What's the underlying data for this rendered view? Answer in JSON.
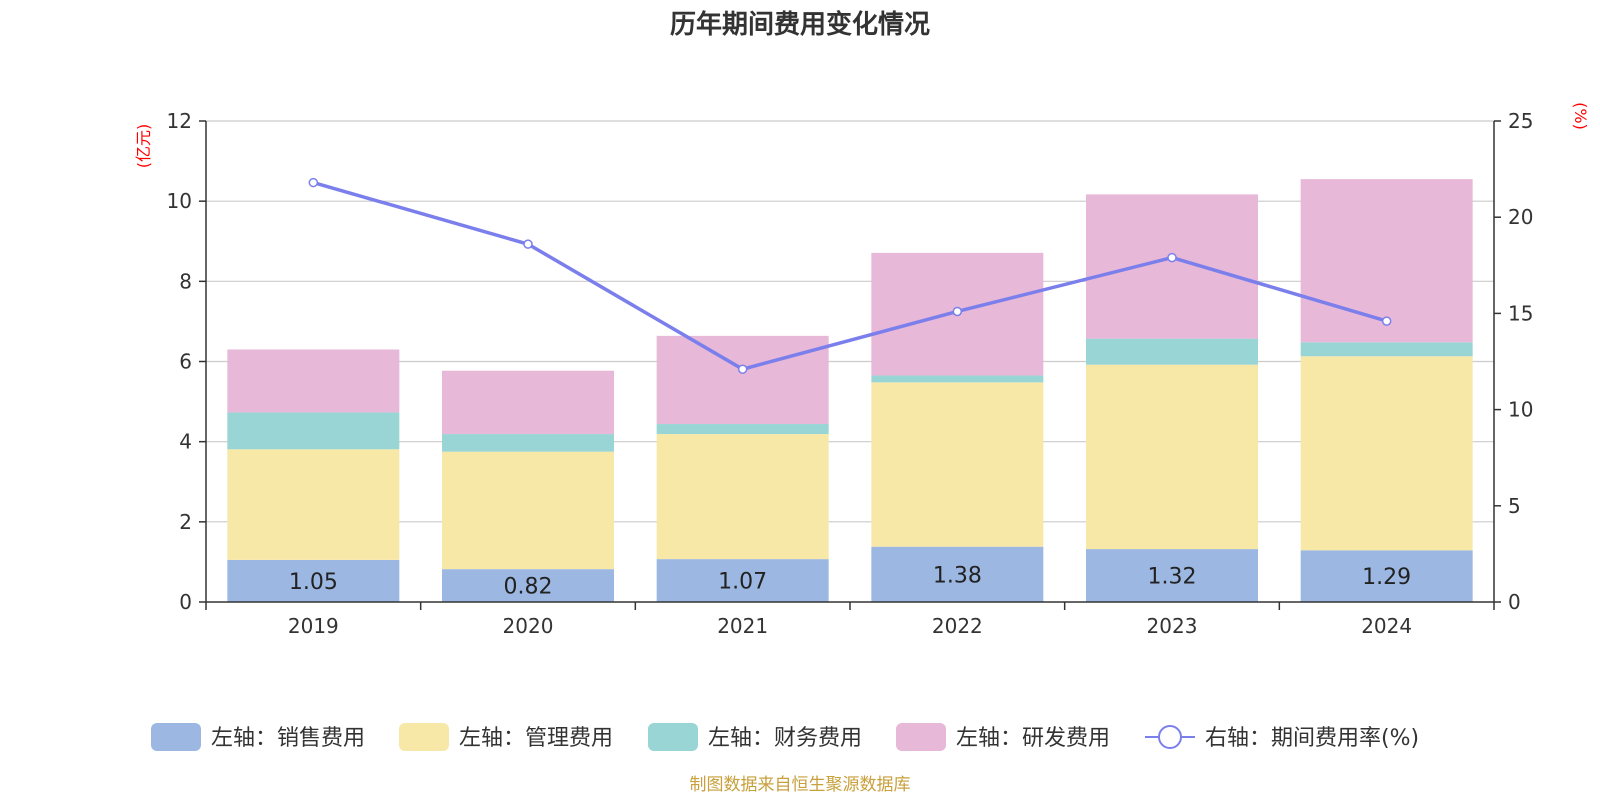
{
  "chart_data": {
    "type": "bar",
    "title": "历年期间费用变化情况",
    "categories": [
      "2019",
      "2020",
      "2021",
      "2022",
      "2023",
      "2024"
    ],
    "left_axis": {
      "unit": "(亿元)",
      "ylim": [
        0,
        12
      ],
      "ticks": [
        "0",
        "2",
        "4",
        "6",
        "8",
        "10",
        "12"
      ]
    },
    "right_axis": {
      "unit": "(%)",
      "ylim": [
        0,
        25
      ],
      "ticks": [
        "0",
        "5",
        "10",
        "15",
        "20",
        "25"
      ]
    },
    "series": [
      {
        "name": "左轴：销售费用",
        "type": "bar",
        "axis": "left",
        "color": "#9cb8e2",
        "values": [
          1.05,
          0.82,
          1.07,
          1.38,
          1.32,
          1.29
        ],
        "labels": [
          "1.05",
          "0.82",
          "1.07",
          "1.38",
          "1.32",
          "1.29"
        ]
      },
      {
        "name": "左轴：管理费用",
        "type": "bar",
        "axis": "left",
        "color": "#f8e8a8",
        "values": [
          2.76,
          2.93,
          3.12,
          4.1,
          4.6,
          4.84
        ]
      },
      {
        "name": "左轴：财务费用",
        "type": "bar",
        "axis": "left",
        "color": "#99d5d5",
        "values": [
          0.92,
          0.44,
          0.25,
          0.17,
          0.65,
          0.35
        ]
      },
      {
        "name": "左轴：研发费用",
        "type": "bar",
        "axis": "left",
        "color": "#e8b8d8",
        "values": [
          1.57,
          1.58,
          2.2,
          3.06,
          3.6,
          4.07
        ]
      },
      {
        "name": "右轴：期间费用率(%)",
        "type": "line",
        "axis": "right",
        "color": "#7b7fec",
        "values": [
          21.8,
          18.6,
          12.1,
          15.1,
          17.9,
          14.6
        ]
      }
    ],
    "grid": true,
    "legend": "bottom"
  },
  "footer": {
    "source": "制图数据来自恒生聚源数据库"
  }
}
